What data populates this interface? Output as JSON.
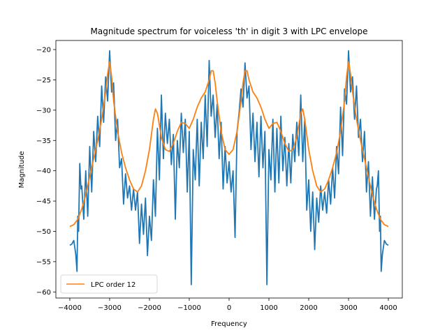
{
  "chart_data": {
    "type": "line",
    "title": "Magnitude spectrum for voiceless 'th' in digit 3 with LPC envelope",
    "xlabel": "Frequency",
    "ylabel": "Magnitude",
    "xlim": [
      -4350,
      4350
    ],
    "ylim": [
      -61,
      -18.5
    ],
    "xticks": [
      -4000,
      -3000,
      -2000,
      -1000,
      0,
      1000,
      2000,
      3000,
      4000
    ],
    "xtick_labels": [
      "−4000",
      "−3000",
      "−2000",
      "−1000",
      "0",
      "1000",
      "2000",
      "3000",
      "4000"
    ],
    "yticks": [
      -60,
      -55,
      -50,
      -45,
      -40,
      -35,
      -30,
      -25,
      -20
    ],
    "ytick_labels": [
      "−60",
      "−55",
      "−50",
      "−45",
      "−40",
      "−35",
      "−30",
      "−25",
      "−20"
    ],
    "grid": false,
    "legend_position": "lower-left",
    "series": [
      {
        "color": "#1f77b4",
        "x": [
          -4000,
          -3950,
          -3900,
          -3850,
          -3820,
          -3800,
          -3780,
          -3750,
          -3720,
          -3700,
          -3650,
          -3600,
          -3550,
          -3500,
          -3450,
          -3400,
          -3350,
          -3300,
          -3250,
          -3200,
          -3150,
          -3100,
          -3050,
          -3000,
          -2950,
          -2900,
          -2850,
          -2800,
          -2750,
          -2700,
          -2650,
          -2600,
          -2550,
          -2500,
          -2450,
          -2400,
          -2350,
          -2300,
          -2250,
          -2200,
          -2150,
          -2100,
          -2050,
          -2000,
          -1950,
          -1900,
          -1850,
          -1800,
          -1750,
          -1700,
          -1650,
          -1600,
          -1550,
          -1500,
          -1450,
          -1400,
          -1350,
          -1300,
          -1250,
          -1200,
          -1150,
          -1100,
          -1050,
          -1000,
          -950,
          -900,
          -850,
          -800,
          -750,
          -700,
          -650,
          -600,
          -550,
          -500,
          -450,
          -400,
          -350,
          -300,
          -250,
          -200,
          -150,
          -100,
          -50,
          0,
          50,
          100,
          150,
          200,
          250,
          300,
          350,
          400,
          450,
          500,
          550,
          600,
          650,
          700,
          750,
          800,
          850,
          900,
          950,
          1000,
          1050,
          1100,
          1150,
          1200,
          1250,
          1300,
          1350,
          1400,
          1450,
          1500,
          1550,
          1600,
          1650,
          1700,
          1750,
          1800,
          1850,
          1900,
          1950,
          2000,
          2050,
          2100,
          2150,
          2200,
          2250,
          2300,
          2350,
          2400,
          2450,
          2500,
          2550,
          2600,
          2650,
          2700,
          2750,
          2800,
          2850,
          2900,
          2950,
          3000,
          3050,
          3100,
          3150,
          3200,
          3250,
          3300,
          3350,
          3400,
          3450,
          3500,
          3550,
          3600,
          3650,
          3700,
          3720,
          3750,
          3780,
          3800,
          3820,
          3850,
          3900,
          3950,
          4000
        ],
        "values": [
          -52.3,
          -52.1,
          -51.5,
          -53.8,
          -56.6,
          -47.5,
          -50.0,
          -38.8,
          -43.0,
          -42.5,
          -48.0,
          -40.0,
          -47.5,
          -36.0,
          -43.5,
          -33.5,
          -38.5,
          -31.0,
          -36.0,
          -26.0,
          -32.0,
          -24.5,
          -28.5,
          -20.2,
          -27.0,
          -25.5,
          -35.0,
          -31.5,
          -39.5,
          -38.0,
          -45.5,
          -40.5,
          -44.5,
          -42.5,
          -46.5,
          -43.0,
          -46.5,
          -43.5,
          -52.0,
          -45.5,
          -50.5,
          -44.5,
          -54.0,
          -47.5,
          -51.5,
          -41.5,
          -47.5,
          -33.0,
          -41.5,
          -27.5,
          -38.0,
          -30.5,
          -35.5,
          -31.5,
          -39.0,
          -34.0,
          -48.0,
          -35.0,
          -39.5,
          -30.5,
          -37.0,
          -31.5,
          -43.5,
          -33.5,
          -58.8,
          -36.5,
          -41.5,
          -31.5,
          -42.5,
          -32.0,
          -38.0,
          -27.5,
          -36.0,
          -21.8,
          -31.0,
          -27.5,
          -34.5,
          -29.0,
          -38.0,
          -32.0,
          -43.0,
          -36.0,
          -42.0,
          -38.5,
          -43.5,
          -40.0,
          -51.0,
          -33.5,
          -30.5,
          -26.5,
          -29.5,
          -22.2,
          -28.0,
          -26.0,
          -36.5,
          -30.5,
          -38.5,
          -32.0,
          -41.0,
          -31.0,
          -39.5,
          -33.5,
          -58.8,
          -36.5,
          -41.5,
          -31.5,
          -43.5,
          -33.0,
          -42.0,
          -31.0,
          -40.0,
          -34.5,
          -42.5,
          -35.5,
          -42.0,
          -34.0,
          -38.5,
          -32.0,
          -37.5,
          -27.5,
          -38.5,
          -31.5,
          -46.5,
          -41.5,
          -50.0,
          -43.5,
          -53.0,
          -44.5,
          -48.5,
          -42.5,
          -46.5,
          -43.5,
          -47.0,
          -41.5,
          -45.5,
          -39.5,
          -44.5,
          -36.0,
          -40.5,
          -29.5,
          -37.5,
          -26.5,
          -29.0,
          -20.2,
          -27.0,
          -24.5,
          -31.5,
          -26.0,
          -34.5,
          -31.5,
          -38.5,
          -33.5,
          -43.5,
          -38.5,
          -47.5,
          -41.0,
          -48.0,
          -43.0,
          -42.5,
          -40.0,
          -50.0,
          -47.5,
          -56.6,
          -53.8,
          -51.5,
          -52.1,
          -52.3
        ]
      },
      {
        "name": "LPC order 12",
        "color": "#ff7f0e",
        "x": [
          -4000,
          -3900,
          -3800,
          -3700,
          -3600,
          -3500,
          -3400,
          -3300,
          -3200,
          -3100,
          -3050,
          -3000,
          -2950,
          -2900,
          -2800,
          -2700,
          -2600,
          -2500,
          -2400,
          -2300,
          -2200,
          -2100,
          -2000,
          -1900,
          -1850,
          -1800,
          -1750,
          -1700,
          -1600,
          -1500,
          -1400,
          -1300,
          -1200,
          -1100,
          -1000,
          -900,
          -800,
          -700,
          -600,
          -500,
          -450,
          -400,
          -350,
          -300,
          -200,
          -100,
          0,
          100,
          200,
          300,
          350,
          400,
          450,
          500,
          600,
          700,
          800,
          900,
          1000,
          1100,
          1200,
          1300,
          1400,
          1500,
          1600,
          1700,
          1750,
          1800,
          1850,
          1900,
          2000,
          2100,
          2200,
          2300,
          2400,
          2500,
          2600,
          2700,
          2800,
          2900,
          2950,
          3000,
          3050,
          3100,
          3200,
          3300,
          3400,
          3500,
          3600,
          3700,
          3800,
          3900,
          4000
        ],
        "values": [
          -49.2,
          -48.9,
          -48.0,
          -46.3,
          -44.0,
          -41.0,
          -38.0,
          -35.0,
          -31.5,
          -27.0,
          -24.0,
          -22.0,
          -24.5,
          -28.5,
          -33.5,
          -37.0,
          -39.5,
          -41.5,
          -43.0,
          -43.5,
          -42.5,
          -40.0,
          -36.5,
          -31.5,
          -29.8,
          -30.5,
          -32.5,
          -34.5,
          -36.5,
          -36.8,
          -35.5,
          -33.5,
          -32.0,
          -32.2,
          -33.0,
          -31.5,
          -29.5,
          -28.0,
          -27.0,
          -25.0,
          -23.5,
          -23.5,
          -25.5,
          -28.5,
          -33.5,
          -36.5,
          -37.3,
          -36.5,
          -33.5,
          -28.5,
          -25.5,
          -23.5,
          -23.5,
          -25.0,
          -27.0,
          -28.0,
          -29.5,
          -31.5,
          -33.0,
          -32.2,
          -32.0,
          -33.5,
          -35.5,
          -36.8,
          -36.5,
          -34.5,
          -32.5,
          -30.5,
          -29.8,
          -31.5,
          -36.5,
          -40.0,
          -42.5,
          -43.5,
          -43.0,
          -41.5,
          -39.5,
          -37.0,
          -33.5,
          -28.5,
          -24.5,
          -22.0,
          -24.0,
          -27.0,
          -31.5,
          -35.0,
          -38.0,
          -41.0,
          -44.0,
          -46.3,
          -48.0,
          -48.9,
          -49.2
        ]
      }
    ],
    "legend": [
      {
        "label": "LPC order 12",
        "color": "#ff7f0e"
      }
    ]
  }
}
